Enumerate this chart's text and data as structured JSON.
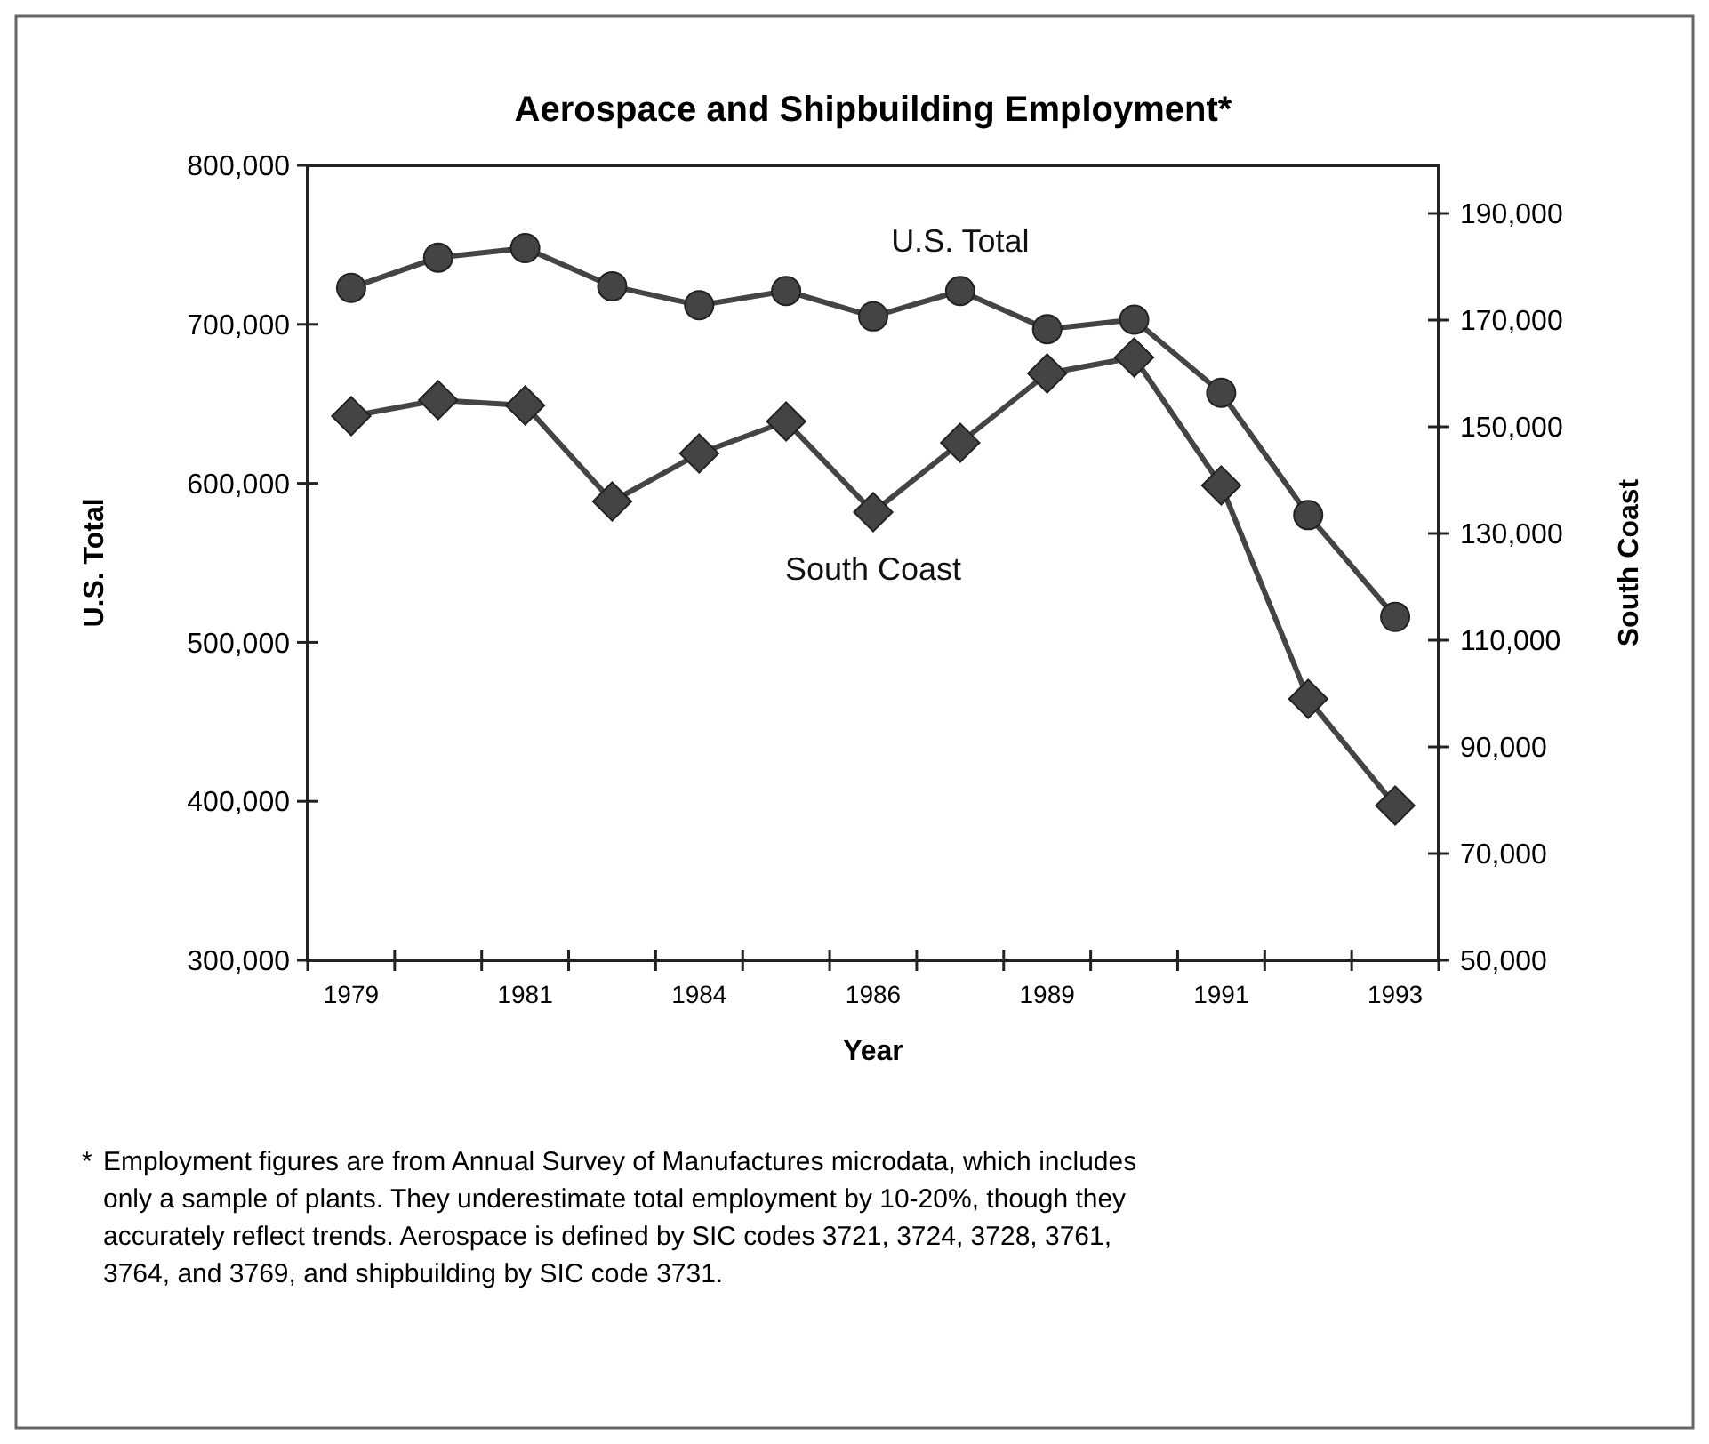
{
  "chart_data": {
    "type": "line",
    "title": "Aerospace and Shipbuilding Employment*",
    "xlabel": "Year",
    "ylabel": "U.S. Total",
    "y2label": "South Coast",
    "categories": [
      "1979",
      null,
      "1981",
      null,
      "1984",
      null,
      "1986",
      null,
      "1989",
      null,
      "1991",
      null,
      "1993"
    ],
    "series": [
      {
        "name": "U.S. Total",
        "color": "#444444",
        "marker": "circle",
        "values": [
          723000,
          742000,
          748000,
          724000,
          712000,
          721000,
          705000,
          721000,
          697000,
          703000,
          657000,
          580000,
          516000
        ]
      },
      {
        "name": "South Coast",
        "color": "#444444",
        "marker": "diamond",
        "axis": "y2",
        "values": [
          152000,
          155000,
          154000,
          136000,
          145000,
          151000,
          134000,
          147000,
          160000,
          163000,
          139000,
          99000,
          79000
        ]
      }
    ],
    "ylim": [
      300000,
      800000
    ],
    "yticks": [
      {
        "value": 300000,
        "label": "300,000"
      },
      {
        "value": 400000,
        "label": "400,000"
      },
      {
        "value": 500000,
        "label": "500,000"
      },
      {
        "value": 600000,
        "label": "600,000"
      },
      {
        "value": 700000,
        "label": "700,000"
      },
      {
        "value": 800000,
        "label": "800,000"
      }
    ],
    "y2lim": [
      50000,
      199000
    ],
    "y2ticks": [
      {
        "value": 50000,
        "label": "50,000"
      },
      {
        "value": 70000,
        "label": "70,000"
      },
      {
        "value": 90000,
        "label": "90,000"
      },
      {
        "value": 110000,
        "label": "110,000"
      },
      {
        "value": 130000,
        "label": "130,000"
      },
      {
        "value": 150000,
        "label": "150,000"
      },
      {
        "value": 170000,
        "label": "170,000"
      },
      {
        "value": 190000,
        "label": "190,000"
      }
    ],
    "grid": false,
    "annotations": [
      "* Employment figures are from Annual Survey of Manufactures microdata, which includes only a sample of plants. They underestimate total employment by 10-20%, though they accurately reflect trends. Aerospace is defined by SIC codes 3721, 3724, 3728, 3761, 3764, and 3769, and shipbuilding by SIC code 3731."
    ]
  }
}
